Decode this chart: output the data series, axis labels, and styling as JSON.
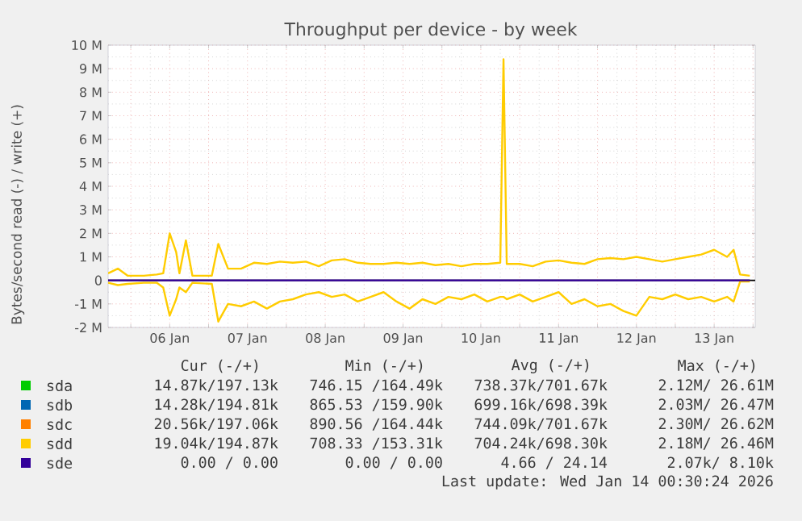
{
  "chart_data": {
    "type": "line",
    "title": "Throughput per device - by week",
    "ylabel": "Bytes/second read (-) / write (+)",
    "x": [
      "2026-01-05T17:00",
      "2026-01-05T20:00",
      "2026-01-05T23:00",
      "2026-01-06T04:00",
      "2026-01-06T08:00",
      "2026-01-06T10:00",
      "2026-01-06T12:00",
      "2026-01-06T14:00",
      "2026-01-06T15:00",
      "2026-01-06T17:00",
      "2026-01-06T19:00",
      "2026-01-07T01:00",
      "2026-01-07T03:00",
      "2026-01-07T06:00",
      "2026-01-07T10:00",
      "2026-01-07T14:00",
      "2026-01-07T18:00",
      "2026-01-07T22:00",
      "2026-01-08T02:00",
      "2026-01-08T06:00",
      "2026-01-08T10:00",
      "2026-01-08T14:00",
      "2026-01-08T18:00",
      "2026-01-08T22:00",
      "2026-01-09T02:00",
      "2026-01-09T06:00",
      "2026-01-09T10:00",
      "2026-01-09T14:00",
      "2026-01-09T18:00",
      "2026-01-09T22:00",
      "2026-01-10T02:00",
      "2026-01-10T06:00",
      "2026-01-10T10:00",
      "2026-01-10T14:00",
      "2026-01-10T18:00",
      "2026-01-10T19:00",
      "2026-01-10T20:00",
      "2026-01-11T00:00",
      "2026-01-11T04:00",
      "2026-01-11T08:00",
      "2026-01-11T12:00",
      "2026-01-11T16:00",
      "2026-01-11T20:00",
      "2026-01-12T00:00",
      "2026-01-12T04:00",
      "2026-01-12T08:00",
      "2026-01-12T12:00",
      "2026-01-12T16:00",
      "2026-01-12T20:00",
      "2026-01-13T00:00",
      "2026-01-13T04:00",
      "2026-01-13T08:00",
      "2026-01-13T12:00",
      "2026-01-13T16:00",
      "2026-01-13T18:00",
      "2026-01-13T20:00",
      "2026-01-13T23:00"
    ],
    "series": [
      {
        "name": "sda",
        "color": "#00cc00",
        "values": [
          null,
          null,
          null,
          null,
          null,
          null,
          null,
          null,
          null,
          null,
          null,
          null,
          null,
          null,
          null,
          null,
          null,
          null,
          null,
          null,
          null,
          null,
          null,
          null,
          null,
          null,
          null,
          null,
          null,
          null,
          null,
          null,
          null,
          null,
          null,
          null,
          null,
          null,
          null,
          null,
          null,
          null,
          null,
          null,
          null,
          null,
          null,
          null,
          null,
          null,
          null,
          null,
          null,
          null,
          null,
          null,
          null
        ]
      },
      {
        "name": "sdb",
        "color": "#0066b3",
        "values": [
          null,
          null,
          null,
          null,
          null,
          null,
          null,
          null,
          null,
          null,
          null,
          null,
          null,
          null,
          null,
          null,
          null,
          null,
          null,
          null,
          null,
          null,
          null,
          null,
          null,
          null,
          null,
          null,
          null,
          null,
          null,
          null,
          null,
          null,
          null,
          null,
          null,
          null,
          null,
          null,
          null,
          null,
          null,
          null,
          null,
          null,
          null,
          null,
          null,
          null,
          null,
          null,
          null,
          null,
          null,
          null,
          null
        ]
      },
      {
        "name": "sdc",
        "color": "#ff8000",
        "values": [
          null,
          null,
          null,
          null,
          null,
          null,
          null,
          null,
          null,
          null,
          null,
          null,
          null,
          null,
          null,
          null,
          null,
          null,
          null,
          null,
          null,
          null,
          null,
          null,
          null,
          null,
          null,
          null,
          null,
          null,
          null,
          null,
          null,
          null,
          null,
          null,
          null,
          null,
          null,
          null,
          null,
          null,
          null,
          null,
          null,
          null,
          null,
          null,
          null,
          null,
          null,
          null,
          null,
          null,
          null,
          null,
          null
        ]
      },
      {
        "name": "sdd",
        "color": "#ffcc00",
        "values": [
          300000,
          500000,
          200000,
          200000,
          250000,
          300000,
          2000000,
          1200000,
          300000,
          1700000,
          200000,
          200000,
          1550000,
          500000,
          500000,
          750000,
          700000,
          800000,
          750000,
          800000,
          600000,
          850000,
          900000,
          750000,
          700000,
          700000,
          750000,
          700000,
          750000,
          650000,
          700000,
          600000,
          700000,
          700000,
          750000,
          9400000,
          700000,
          700000,
          600000,
          800000,
          850000,
          750000,
          700000,
          900000,
          950000,
          900000,
          1000000,
          900000,
          800000,
          900000,
          1000000,
          1100000,
          1300000,
          1000000,
          1300000,
          250000,
          200000
        ]
      },
      {
        "color": "#ffcc00",
        "values": [
          -100000,
          -200000,
          -150000,
          -100000,
          -100000,
          -300000,
          -1500000,
          -800000,
          -300000,
          -500000,
          -100000,
          -150000,
          -1750000,
          -1000000,
          -1100000,
          -900000,
          -1200000,
          -900000,
          -800000,
          -600000,
          -500000,
          -700000,
          -600000,
          -900000,
          -700000,
          -500000,
          -900000,
          -1200000,
          -800000,
          -1000000,
          -700000,
          -800000,
          -600000,
          -900000,
          -700000,
          -700000,
          -800000,
          -600000,
          -900000,
          -700000,
          -500000,
          -1000000,
          -800000,
          -1100000,
          -1000000,
          -1300000,
          -1500000,
          -700000,
          -800000,
          -600000,
          -800000,
          -700000,
          -900000,
          -700000,
          -900000,
          -50000,
          -50000
        ]
      },
      {
        "name": "sde",
        "color": "#330099",
        "x": [
          "2026-01-05T17:00",
          "2026-01-13T23:00"
        ],
        "values": [
          0,
          0
        ]
      }
    ],
    "xlim": [
      "2026-01-05T17:00",
      "2026-01-14T00:40"
    ],
    "xticks": [
      {
        "value": "2026-01-06T00:00",
        "label": null
      },
      {
        "value": "2026-01-06T12:00",
        "label": "06 Jan"
      },
      {
        "value": "2026-01-07T00:00",
        "label": null
      },
      {
        "value": "2026-01-07T12:00",
        "label": "07 Jan"
      },
      {
        "value": "2026-01-08T00:00",
        "label": null
      },
      {
        "value": "2026-01-08T12:00",
        "label": "08 Jan"
      },
      {
        "value": "2026-01-09T00:00",
        "label": null
      },
      {
        "value": "2026-01-09T12:00",
        "label": "09 Jan"
      },
      {
        "value": "2026-01-10T00:00",
        "label": null
      },
      {
        "value": "2026-01-10T12:00",
        "label": "10 Jan"
      },
      {
        "value": "2026-01-11T00:00",
        "label": null
      },
      {
        "value": "2026-01-11T12:00",
        "label": "11 Jan"
      },
      {
        "value": "2026-01-12T00:00",
        "label": null
      },
      {
        "value": "2026-01-12T12:00",
        "label": "12 Jan"
      },
      {
        "value": "2026-01-13T00:00",
        "label": null
      },
      {
        "value": "2026-01-13T12:00",
        "label": "13 Jan"
      },
      {
        "value": "2026-01-14T00:00",
        "label": null
      }
    ],
    "ylim": [
      -2000000,
      10000000
    ],
    "yticks": [
      {
        "value": -2000000,
        "label": "-2 M"
      },
      {
        "value": -1000000,
        "label": "-1 M"
      },
      0,
      {
        "value": 1000000,
        "label": "1 M"
      },
      {
        "value": 2000000,
        "label": "2 M"
      },
      {
        "value": 3000000,
        "label": "3 M"
      },
      {
        "value": 4000000,
        "label": "4 M"
      },
      {
        "value": 5000000,
        "label": "5 M"
      },
      {
        "value": 6000000,
        "label": "6 M"
      },
      {
        "value": 7000000,
        "label": "7 M"
      },
      {
        "value": 8000000,
        "label": "8 M"
      },
      {
        "value": 9000000,
        "label": "9 M"
      },
      {
        "value": 10000000,
        "label": "10 M"
      }
    ],
    "ref_lines": [
      {
        "axis": "y",
        "value": 0,
        "color": "#000000"
      }
    ],
    "grid": true,
    "legend": "bottom",
    "annotations": [
      "Cur (-/+)",
      "Min (-/+)",
      "Avg (-/+)",
      "Max (-/+)",
      "14.87k/197.13k",
      "746.15 /164.49k",
      "738.37k/701.67k",
      "2.12M/ 26.61M",
      "14.28k/194.81k",
      "865.53 /159.90k",
      "699.16k/698.39k",
      "2.03M/ 26.47M",
      "20.56k/197.06k",
      "890.56 /164.44k",
      "744.09k/701.67k",
      "2.30M/ 26.62M",
      "19.04k/194.87k",
      "708.33 /153.31k",
      "704.24k/698.30k",
      "2.18M/ 26.46M",
      "0.00 /  0.00",
      "0.00 /  0.00",
      "4.66 / 24.14",
      "2.07k/  8.10k",
      "Last update: Wed Jan 14 00:30:24 2026"
    ]
  }
}
